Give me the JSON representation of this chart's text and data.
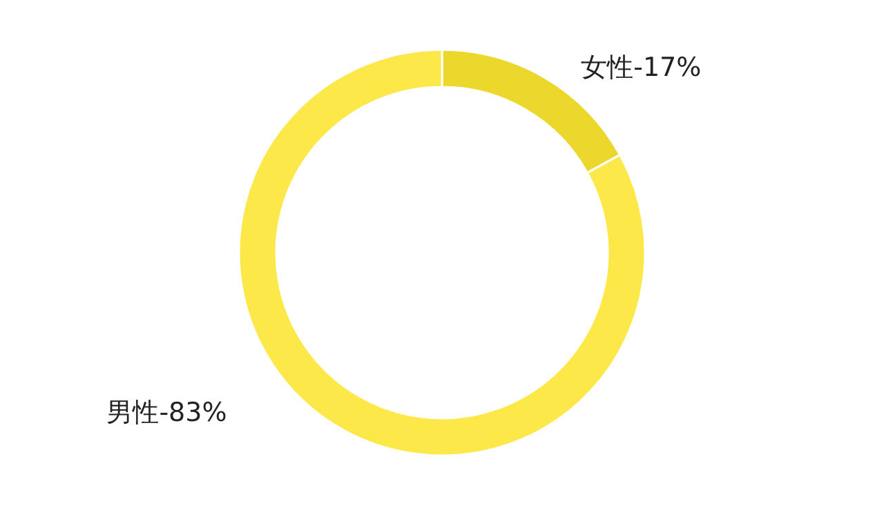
{
  "chart_data": {
    "type": "donut",
    "categories": [
      null,
      null
    ],
    "values": [
      17,
      83
    ],
    "colors": [
      "#ecd82c",
      "#fde84a"
    ],
    "value_labels": [
      "女性-17%",
      "男性-83%"
    ]
  }
}
